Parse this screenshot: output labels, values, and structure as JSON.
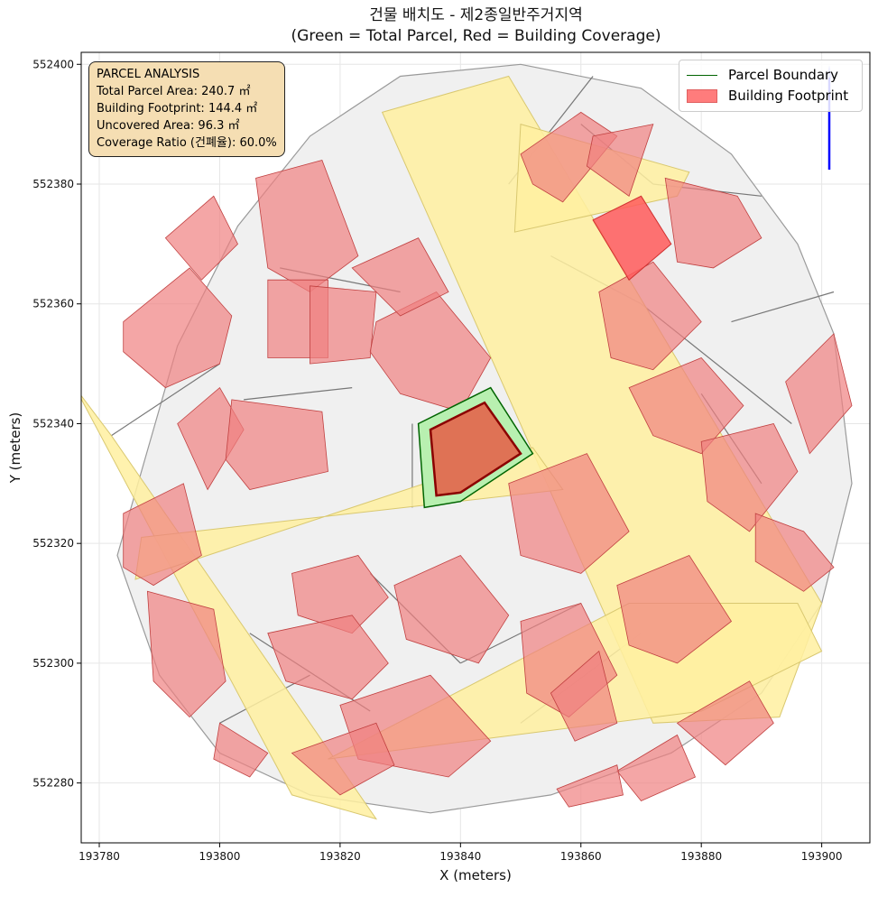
{
  "title_line1": "건물 배치도 - 제2종일반주거지역",
  "title_line2": "(Green = Total Parcel, Red = Building Coverage)",
  "info_box": {
    "heading": "PARCEL ANALYSIS",
    "total_area": "Total Parcel Area: 240.7 ㎡",
    "footprint": "Building Footprint: 144.4 ㎡",
    "uncovered": "Uncovered Area: 96.3 ㎡",
    "coverage": "Coverage Ratio (건폐율): 60.0%"
  },
  "legend": {
    "parcel": "Parcel Boundary",
    "building": "Building Footprint"
  },
  "axes": {
    "xlabel": "X (meters)",
    "ylabel": "Y (meters)",
    "xlim": [
      193777,
      193908
    ],
    "ylim": [
      552270,
      552402
    ],
    "x_ticks": [
      "193780",
      "193800",
      "193820",
      "193840",
      "193860",
      "193880",
      "193900"
    ],
    "y_ticks": [
      "552280",
      "552300",
      "552320",
      "552340",
      "552360",
      "552380",
      "552400"
    ]
  },
  "colors": {
    "parcel_edge": "#006400",
    "parcel_fill": "#b8f0b0",
    "building_fill": "#f08080",
    "building_edge": "#c04040",
    "road_fill": "#fff0a0",
    "lot_fill": "#f0f0f0",
    "north_arrow": "#0000ff"
  },
  "north_arrow": "arrow-up",
  "target_parcel": [
    [
      193833,
      552340
    ],
    [
      193845,
      552346
    ],
    [
      193852,
      552335
    ],
    [
      193840,
      552327
    ],
    [
      193834,
      552326
    ]
  ],
  "target_building": [
    [
      193835,
      552339
    ],
    [
      193844,
      552343.5
    ],
    [
      193850,
      552335
    ],
    [
      193840,
      552328.5
    ],
    [
      193836,
      552328
    ]
  ],
  "blocks": [
    [
      [
        193783,
        552318
      ],
      [
        193793,
        552353
      ],
      [
        193803,
        552373
      ],
      [
        193815,
        552388
      ],
      [
        193830,
        552398
      ],
      [
        193850,
        552400
      ],
      [
        193870,
        552396
      ],
      [
        193885,
        552385
      ],
      [
        193896,
        552370
      ],
      [
        193902,
        552355
      ],
      [
        193905,
        552330
      ],
      [
        193900,
        552310
      ],
      [
        193890,
        552295
      ],
      [
        193875,
        552285
      ],
      [
        193855,
        552278
      ],
      [
        193835,
        552275
      ],
      [
        193815,
        552278
      ],
      [
        193800,
        552285
      ],
      [
        193790,
        552298
      ]
    ]
  ],
  "lot_lines": [
    [
      [
        193810,
        552366
      ],
      [
        193830,
        552362
      ]
    ],
    [
      [
        193804,
        552344
      ],
      [
        193822,
        552346
      ]
    ],
    [
      [
        193800,
        552350
      ],
      [
        193782,
        552338
      ]
    ],
    [
      [
        193832,
        552340
      ],
      [
        193832,
        552326
      ]
    ],
    [
      [
        193855,
        552368
      ],
      [
        193870,
        552360
      ]
    ],
    [
      [
        193870,
        552360
      ],
      [
        193895,
        552340
      ]
    ],
    [
      [
        193885,
        552357
      ],
      [
        193902,
        552362
      ]
    ],
    [
      [
        193880,
        552345
      ],
      [
        193890,
        552330
      ]
    ],
    [
      [
        193825,
        552315
      ],
      [
        193840,
        552300
      ]
    ],
    [
      [
        193840,
        552300
      ],
      [
        193860,
        552310
      ]
    ],
    [
      [
        193805,
        552305
      ],
      [
        193825,
        552292
      ]
    ],
    [
      [
        193850,
        552290
      ],
      [
        193870,
        552305
      ]
    ],
    [
      [
        193860,
        552390
      ],
      [
        193872,
        552380
      ]
    ],
    [
      [
        193872,
        552380
      ],
      [
        193890,
        552378
      ]
    ],
    [
      [
        193815,
        552298
      ],
      [
        193800,
        552290
      ]
    ],
    [
      [
        193848,
        552380
      ],
      [
        193862,
        552398
      ]
    ]
  ],
  "roads": [
    [
      [
        193827,
        552392
      ],
      [
        193848,
        552398
      ],
      [
        193900,
        552310
      ],
      [
        193893,
        552291
      ],
      [
        193872,
        552290
      ]
    ],
    [
      [
        193776,
        552346
      ],
      [
        193782,
        552338
      ],
      [
        193826,
        552274
      ],
      [
        193812,
        552278
      ]
    ],
    [
      [
        193786,
        552314
      ],
      [
        193852,
        552336
      ],
      [
        193857,
        552329
      ],
      [
        193787,
        552321
      ]
    ],
    [
      [
        193850,
        552390
      ],
      [
        193878,
        552382
      ],
      [
        193876,
        552378
      ],
      [
        193849,
        552372
      ]
    ],
    [
      [
        193818,
        552284
      ],
      [
        193868,
        552310
      ],
      [
        193896,
        552310
      ],
      [
        193900,
        552302
      ],
      [
        193880,
        552292
      ]
    ]
  ],
  "buildings": [
    [
      [
        193806,
        552381
      ],
      [
        193817,
        552384
      ],
      [
        193823,
        552368
      ],
      [
        193815,
        552362
      ],
      [
        193808,
        552366
      ]
    ],
    [
      [
        193791,
        552371
      ],
      [
        193799,
        552378
      ],
      [
        193803,
        552370
      ],
      [
        193797,
        552364
      ]
    ],
    [
      [
        193784,
        552357
      ],
      [
        193795,
        552366
      ],
      [
        193802,
        552358
      ],
      [
        193800,
        552350
      ],
      [
        193791,
        552346
      ],
      [
        193784,
        552352
      ]
    ],
    [
      [
        193808,
        552364
      ],
      [
        193818,
        552364
      ],
      [
        193818,
        552351
      ],
      [
        193808,
        552351
      ]
    ],
    [
      [
        193815,
        552363
      ],
      [
        193826,
        552362
      ],
      [
        193825,
        552351
      ],
      [
        193815,
        552350
      ]
    ],
    [
      [
        193793,
        552340
      ],
      [
        193800,
        552346
      ],
      [
        193804,
        552339
      ],
      [
        193798,
        552329
      ]
    ],
    [
      [
        193802,
        552344
      ],
      [
        193817,
        552342
      ],
      [
        193818,
        552332
      ],
      [
        193805,
        552329
      ],
      [
        193801,
        552334
      ]
    ],
    [
      [
        193826,
        552357
      ],
      [
        193836,
        552362
      ],
      [
        193845,
        552351
      ],
      [
        193840,
        552342
      ],
      [
        193830,
        552345
      ],
      [
        193825,
        552352
      ]
    ],
    [
      [
        193822,
        552366
      ],
      [
        193833,
        552371
      ],
      [
        193838,
        552362
      ],
      [
        193830,
        552358
      ]
    ],
    [
      [
        193850,
        552385
      ],
      [
        193860,
        552392
      ],
      [
        193866,
        552388
      ],
      [
        193857,
        552377
      ],
      [
        193852,
        552380
      ]
    ],
    [
      [
        193862,
        552388
      ],
      [
        193872,
        552390
      ],
      [
        193868,
        552378
      ],
      [
        193861,
        552383
      ]
    ],
    [
      [
        193874,
        552381
      ],
      [
        193886,
        552378
      ],
      [
        193890,
        552371
      ],
      [
        193882,
        552366
      ],
      [
        193876,
        552367
      ]
    ],
    [
      [
        193863,
        552362
      ],
      [
        193872,
        552367
      ],
      [
        193880,
        552357
      ],
      [
        193872,
        552349
      ],
      [
        193865,
        552351
      ]
    ],
    [
      [
        193868,
        552346
      ],
      [
        193880,
        552351
      ],
      [
        193887,
        552343
      ],
      [
        193880,
        552335
      ],
      [
        193872,
        552338
      ]
    ],
    [
      [
        193880,
        552337
      ],
      [
        193892,
        552340
      ],
      [
        193896,
        552332
      ],
      [
        193888,
        552322
      ],
      [
        193881,
        552327
      ]
    ],
    [
      [
        193894,
        552347
      ],
      [
        193902,
        552355
      ],
      [
        193905,
        552343
      ],
      [
        193898,
        552335
      ]
    ],
    [
      [
        193889,
        552325
      ],
      [
        193897,
        552322
      ],
      [
        193902,
        552316
      ],
      [
        193897,
        552312
      ],
      [
        193889,
        552317
      ]
    ],
    [
      [
        193848,
        552330
      ],
      [
        193861,
        552335
      ],
      [
        193868,
        552322
      ],
      [
        193860,
        552315
      ],
      [
        193850,
        552318
      ]
    ],
    [
      [
        193866,
        552313
      ],
      [
        193878,
        552318
      ],
      [
        193885,
        552307
      ],
      [
        193876,
        552300
      ],
      [
        193868,
        552303
      ]
    ],
    [
      [
        193850,
        552307
      ],
      [
        193860,
        552310
      ],
      [
        193866,
        552298
      ],
      [
        193858,
        552291
      ],
      [
        193851,
        552295
      ]
    ],
    [
      [
        193855,
        552295
      ],
      [
        193863,
        552302
      ],
      [
        193866,
        552290
      ],
      [
        193859,
        552287
      ]
    ],
    [
      [
        193829,
        552313
      ],
      [
        193840,
        552318
      ],
      [
        193848,
        552308
      ],
      [
        193843,
        552300
      ],
      [
        193831,
        552304
      ]
    ],
    [
      [
        193812,
        552315
      ],
      [
        193823,
        552318
      ],
      [
        193828,
        552311
      ],
      [
        193822,
        552305
      ],
      [
        193813,
        552308
      ]
    ],
    [
      [
        193808,
        552305
      ],
      [
        193822,
        552308
      ],
      [
        193828,
        552300
      ],
      [
        193822,
        552294
      ],
      [
        193811,
        552297
      ]
    ],
    [
      [
        193820,
        552293
      ],
      [
        193835,
        552298
      ],
      [
        193845,
        552287
      ],
      [
        193838,
        552281
      ],
      [
        193823,
        552284
      ]
    ],
    [
      [
        193788,
        552312
      ],
      [
        193799,
        552309
      ],
      [
        193801,
        552297
      ],
      [
        193795,
        552291
      ],
      [
        193789,
        552297
      ]
    ],
    [
      [
        193784,
        552325
      ],
      [
        193794,
        552330
      ],
      [
        193797,
        552318
      ],
      [
        193789,
        552313
      ],
      [
        193784,
        552316
      ]
    ],
    [
      [
        193800,
        552290
      ],
      [
        193808,
        552285
      ],
      [
        193805,
        552281
      ],
      [
        193799,
        552284
      ]
    ],
    [
      [
        193812,
        552285
      ],
      [
        193826,
        552290
      ],
      [
        193829,
        552283
      ],
      [
        193820,
        552278
      ]
    ],
    [
      [
        193876,
        552290
      ],
      [
        193888,
        552297
      ],
      [
        193892,
        552290
      ],
      [
        193884,
        552283
      ]
    ],
    [
      [
        193866,
        552282
      ],
      [
        193876,
        552288
      ],
      [
        193879,
        552281
      ],
      [
        193870,
        552277
      ]
    ],
    [
      [
        193856,
        552279
      ],
      [
        193866,
        552283
      ],
      [
        193867,
        552278
      ],
      [
        193858,
        552276
      ]
    ]
  ],
  "highlight_building": [
    [
      193862,
      552374
    ],
    [
      193870,
      552378
    ],
    [
      193875,
      552370
    ],
    [
      193868,
      552364
    ]
  ]
}
